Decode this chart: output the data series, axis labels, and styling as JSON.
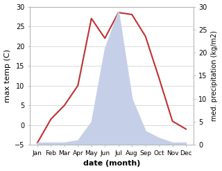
{
  "months": [
    "Jan",
    "Feb",
    "Mar",
    "Apr",
    "May",
    "Jun",
    "Jul",
    "Aug",
    "Sep",
    "Oct",
    "Nov",
    "Dec"
  ],
  "temperature": [
    -4.5,
    1.5,
    5,
    10,
    27,
    22,
    28.5,
    28,
    22.5,
    12,
    1,
    -1
  ],
  "precipitation": [
    0.5,
    0.5,
    0.5,
    1.0,
    5,
    21,
    29,
    10,
    3,
    1.5,
    0.5,
    0.5
  ],
  "temp_color": "#c03030",
  "precip_fill_color": "#c5cfe8",
  "xlabel": "date (month)",
  "ylabel_left": "max temp (C)",
  "ylabel_right": "med. precipitation (kg/m2)",
  "ylim_left": [
    -5,
    30
  ],
  "ylim_right": [
    0,
    30
  ],
  "bg_color": "#ffffff",
  "grid_color": "#cccccc",
  "yticks_left": [
    -5,
    0,
    5,
    10,
    15,
    20,
    25,
    30
  ],
  "yticks_right": [
    0,
    5,
    10,
    15,
    20,
    25,
    30
  ]
}
